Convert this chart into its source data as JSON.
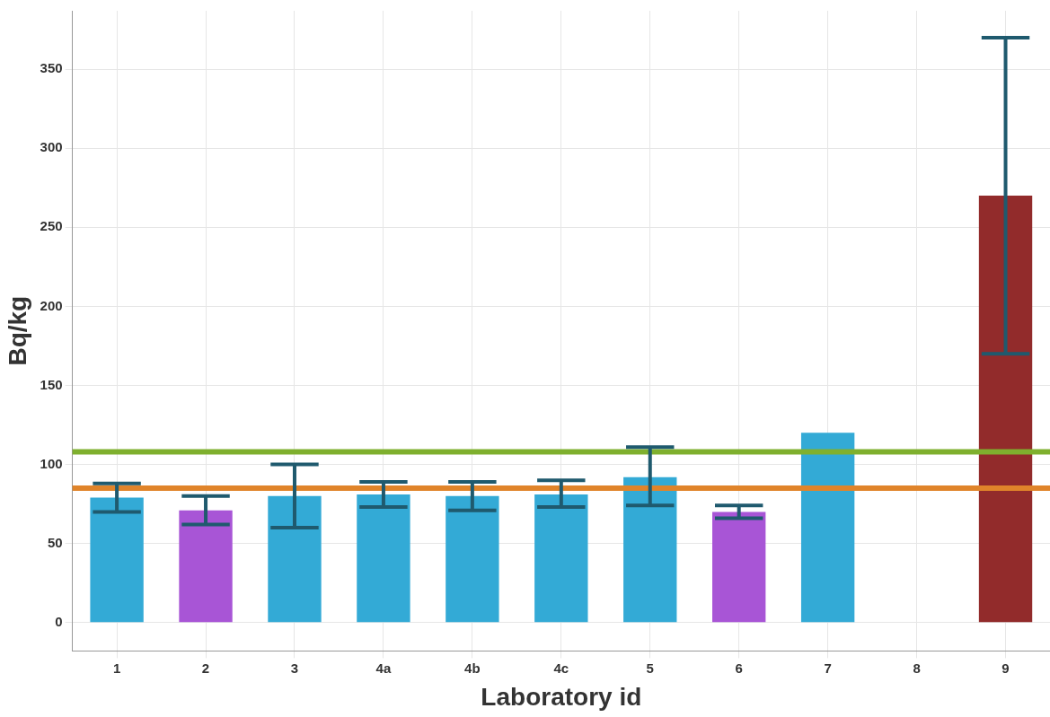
{
  "chart_data": {
    "type": "bar",
    "xlabel": "Laboratory id",
    "ylabel": "Bq/kg",
    "categories": [
      "1",
      "2",
      "3",
      "4a",
      "4b",
      "4c",
      "5",
      "6",
      "7",
      "8",
      "9"
    ],
    "values": [
      79,
      71,
      80,
      81,
      80,
      81,
      92,
      70,
      120,
      null,
      270
    ],
    "colors": [
      "#33aad6",
      "#a855d6",
      "#33aad6",
      "#33aad6",
      "#33aad6",
      "#33aad6",
      "#33aad6",
      "#a855d6",
      "#33aad6",
      "#33aad6",
      "#922b2b"
    ],
    "errors": [
      [
        70,
        88
      ],
      [
        62,
        80
      ],
      [
        60,
        100
      ],
      [
        73,
        89
      ],
      [
        71,
        89
      ],
      [
        73,
        90
      ],
      [
        74,
        111
      ],
      [
        66,
        74
      ],
      null,
      null,
      [
        170,
        370
      ]
    ],
    "ylim": [
      -18,
      387
    ],
    "yticks": [
      0,
      50,
      100,
      150,
      200,
      250,
      300,
      350
    ],
    "ref_lines": [
      {
        "axis": "y",
        "value": 108,
        "label": null,
        "color": "#7fb02e"
      },
      {
        "axis": "y",
        "value": 85,
        "label": null,
        "color": "#e0842a"
      }
    ],
    "grid": true,
    "legend": false
  }
}
